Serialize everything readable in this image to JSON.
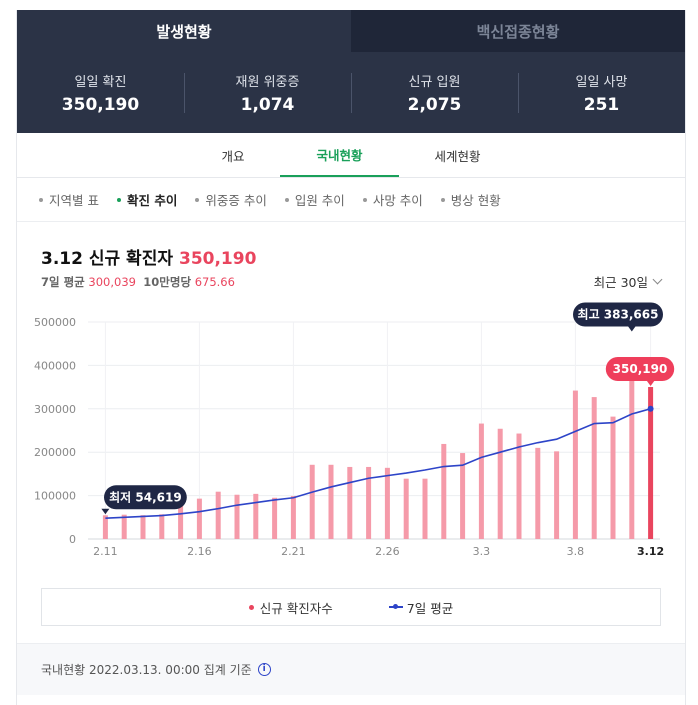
{
  "top_tabs": [
    {
      "label": "발생현황",
      "active": true
    },
    {
      "label": "백신접종현황",
      "active": false
    }
  ],
  "stats": [
    {
      "label": "일일 확진",
      "value": "350,190"
    },
    {
      "label": "재원 위중증",
      "value": "1,074"
    },
    {
      "label": "신규 입원",
      "value": "2,075"
    },
    {
      "label": "일일 사망",
      "value": "251"
    }
  ],
  "section_tabs": [
    {
      "label": "개요",
      "active": false
    },
    {
      "label": "국내현황",
      "active": true
    },
    {
      "label": "세계현황",
      "active": false
    }
  ],
  "sub_tabs": [
    {
      "label": "지역별 표",
      "active": false
    },
    {
      "label": "확진 추이",
      "active": true
    },
    {
      "label": "위중증 추이",
      "active": false
    },
    {
      "label": "입원 추이",
      "active": false
    },
    {
      "label": "사망 추이",
      "active": false
    },
    {
      "label": "병상 현황",
      "active": false
    }
  ],
  "chart_header": {
    "date_title": "3.12 신규 확진자",
    "value": "350,190",
    "avg_label": "7일 평균",
    "avg_value": "300,039",
    "per100k_label": "10만명당",
    "per100k_value": "675.66",
    "period": "최근 30일"
  },
  "chart_data": {
    "type": "bar",
    "categories": [
      "2.11",
      "2.12",
      "2.13",
      "2.14",
      "2.15",
      "2.16",
      "2.17",
      "2.18",
      "2.19",
      "2.20",
      "2.21",
      "2.22",
      "2.23",
      "2.24",
      "2.25",
      "2.26",
      "2.27",
      "2.28",
      "3.1",
      "3.2",
      "3.3",
      "3.4",
      "3.5",
      "3.6",
      "3.7",
      "3.8",
      "3.9",
      "3.10",
      "3.11",
      "3.12"
    ],
    "x_tick_labels": [
      "2.11",
      "2.16",
      "2.21",
      "2.26",
      "3.3",
      "3.8",
      "3.12"
    ],
    "x_tick_indices": [
      0,
      5,
      10,
      15,
      20,
      25,
      29
    ],
    "series": [
      {
        "name": "신규 확진자수",
        "kind": "bar",
        "color": "#f59aa9",
        "highlight_color": "#e9455e",
        "values": [
          54619,
          56000,
          54900,
          57000,
          90000,
          93000,
          109000,
          102000,
          104000,
          95000,
          99000,
          171000,
          171000,
          166000,
          166000,
          164000,
          139000,
          139000,
          219000,
          198000,
          266000,
          254000,
          243000,
          210000,
          202000,
          342000,
          327000,
          282000,
          383665,
          350190
        ]
      },
      {
        "name": "7일 평균",
        "kind": "line",
        "color": "#2d44c8",
        "values": [
          48000,
          50000,
          52000,
          54000,
          58000,
          63000,
          70000,
          78000,
          84000,
          90000,
          95000,
          108000,
          120000,
          130000,
          140000,
          146000,
          152000,
          159000,
          167000,
          170000,
          188000,
          200000,
          212000,
          222000,
          230000,
          248000,
          266000,
          268000,
          288000,
          300039
        ]
      }
    ],
    "yticks": [
      0,
      100000,
      200000,
      300000,
      400000,
      500000
    ],
    "ylim": [
      0,
      500000
    ],
    "annotations": [
      {
        "label": "최저 54,619",
        "index": 0,
        "style": "dark"
      },
      {
        "label": "최고 383,665",
        "index": 28,
        "style": "dark"
      },
      {
        "label": "350,190",
        "index": 29,
        "style": "red"
      }
    ],
    "legend": [
      "신규 확진자수",
      "7일 평균"
    ]
  },
  "footer": {
    "text": "국내현황 2022.03.13. 00:00 집계 기준",
    "icon": "info-icon"
  }
}
